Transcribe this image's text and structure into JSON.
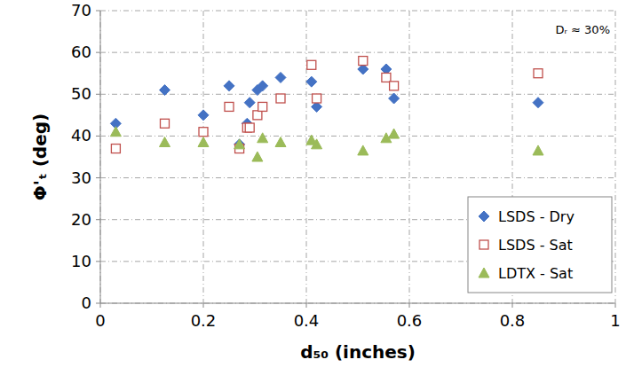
{
  "chart_data": {
    "type": "scatter",
    "xlabel": "d₅₀ (inches)",
    "ylabel": "Φ'ₜ (deg)",
    "annotation": "Dᵣ ≈ 30%",
    "xlim": [
      0,
      1
    ],
    "xticks": [
      0,
      0.2,
      0.4,
      0.6,
      0.8,
      1
    ],
    "ylim": [
      0,
      70
    ],
    "yticks": [
      0,
      10,
      20,
      30,
      40,
      50,
      60,
      70
    ],
    "grid": true,
    "legend": "lower right",
    "series": [
      {
        "name": "LSDS - Dry",
        "color": "#4472c4",
        "marker": "diamond",
        "x": [
          0.03,
          0.125,
          0.2,
          0.25,
          0.27,
          0.285,
          0.29,
          0.305,
          0.315,
          0.35,
          0.41,
          0.42,
          0.51,
          0.555,
          0.57,
          0.85
        ],
        "values": [
          43,
          51,
          45,
          52,
          38,
          43,
          48,
          51,
          52,
          54,
          53,
          47,
          56,
          56,
          49,
          48
        ]
      },
      {
        "name": "LSDS - Sat",
        "color": "#c0504d",
        "marker": "open-square",
        "x": [
          0.03,
          0.125,
          0.2,
          0.25,
          0.27,
          0.285,
          0.29,
          0.305,
          0.315,
          0.35,
          0.41,
          0.42,
          0.51,
          0.555,
          0.57,
          0.85
        ],
        "values": [
          37,
          43,
          41,
          47,
          37,
          42,
          42,
          45,
          47,
          49,
          57,
          49,
          58,
          54,
          52,
          55
        ]
      },
      {
        "name": "LDTX - Sat",
        "color": "#9bbb59",
        "marker": "triangle",
        "x": [
          0.03,
          0.125,
          0.2,
          0.27,
          0.305,
          0.315,
          0.35,
          0.41,
          0.42,
          0.51,
          0.555,
          0.57,
          0.85
        ],
        "values": [
          41,
          38.5,
          38.5,
          38,
          35,
          39.5,
          38.5,
          39,
          38,
          36.5,
          39.5,
          40.5,
          36.5
        ]
      }
    ]
  }
}
